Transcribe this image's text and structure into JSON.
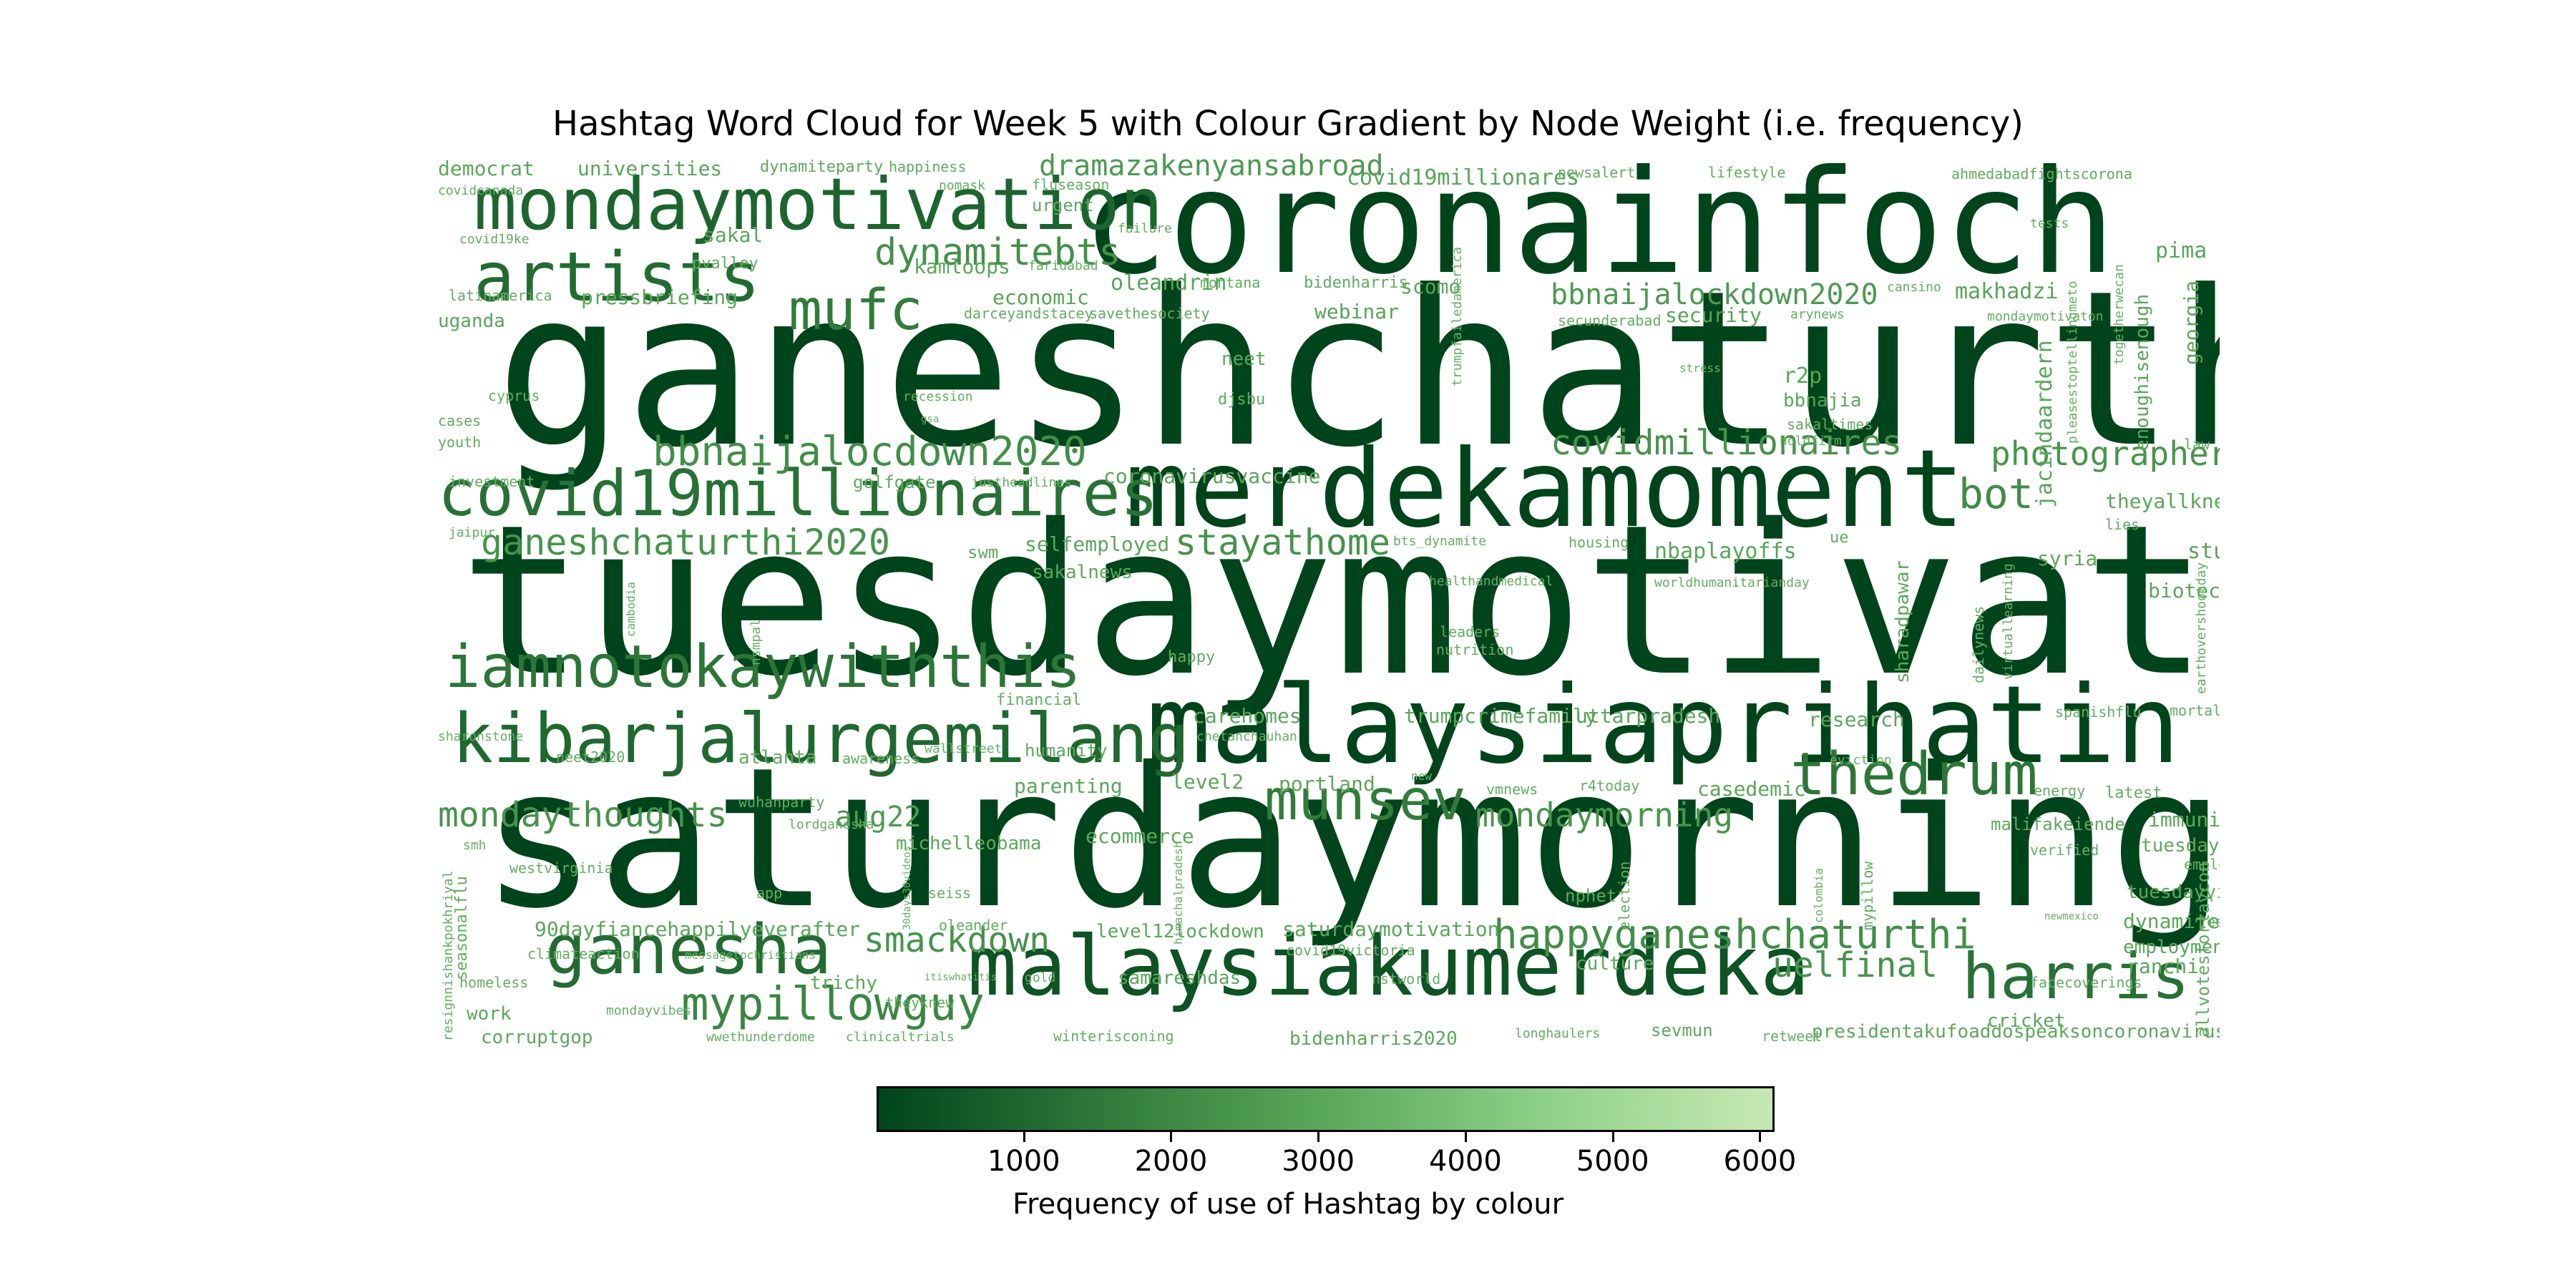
{
  "chart_data": {
    "type": "wordcloud",
    "title": "Hashtag Word Cloud for Week 5 with Colour Gradient by Node Weight (i.e. frequency)",
    "colorbar": {
      "label": "Frequency of use of Hashtag by colour",
      "ticks": [
        1000,
        2000,
        3000,
        4000,
        5000,
        6000
      ],
      "range": [
        0,
        6100
      ],
      "colormap": [
        "#00441b",
        "#2f7a3a",
        "#5aa85a",
        "#8fd18a",
        "#c7e9b4"
      ]
    },
    "words": [
      {
        "text": "ganeshchaturthi",
        "weight": 100
      },
      {
        "text": "tuesdaymotivation",
        "weight": 98
      },
      {
        "text": "saturdaymorning",
        "weight": 92
      },
      {
        "text": "coronainfoch",
        "weight": 72
      },
      {
        "text": "merdekamoment",
        "weight": 52
      },
      {
        "text": "malaysiaprihatin",
        "weight": 52
      },
      {
        "text": "malaysiakumerdeka",
        "weight": 40
      },
      {
        "text": "mondaymotivation",
        "weight": 34
      },
      {
        "text": "kibarjalurgemilang",
        "weight": 33
      },
      {
        "text": "covid19millionaires",
        "weight": 30
      },
      {
        "text": "artists",
        "weight": 32
      },
      {
        "text": "iamnotokaywiththis",
        "weight": 28
      },
      {
        "text": "ganesha",
        "weight": 32
      },
      {
        "text": "harris",
        "weight": 30
      },
      {
        "text": "thedrum",
        "weight": 28
      },
      {
        "text": "mufc",
        "weight": 26
      },
      {
        "text": "munsev",
        "weight": 26
      },
      {
        "text": "mypillowguy",
        "weight": 22
      },
      {
        "text": "happyganeshchaturthi",
        "weight": 19
      },
      {
        "text": "bbnaijalocdown2020",
        "weight": 19
      },
      {
        "text": "dynamitebts",
        "weight": 18
      },
      {
        "text": "ganeshchaturthi2020",
        "weight": 17
      },
      {
        "text": "stayathome",
        "weight": 17
      },
      {
        "text": "covidmillionaires",
        "weight": 17
      },
      {
        "text": "photographer",
        "weight": 16
      },
      {
        "text": "bot",
        "weight": 20
      },
      {
        "text": "mondaythoughts",
        "weight": 17
      },
      {
        "text": "smackdown",
        "weight": 17
      },
      {
        "text": "uelfinal",
        "weight": 17
      },
      {
        "text": "mondaymorning",
        "weight": 16
      },
      {
        "text": "bbnaijalockdown2020",
        "weight": 14
      },
      {
        "text": "dramazakenyansabroad",
        "weight": 14
      },
      {
        "text": "aug22",
        "weight": 14
      },
      {
        "text": "covid19millionares",
        "weight": 10
      },
      {
        "text": "democrat",
        "weight": 9
      },
      {
        "text": "universities",
        "weight": 9
      },
      {
        "text": "dynamiteparty",
        "weight": 8
      },
      {
        "text": "happiness",
        "weight": 7
      },
      {
        "text": "newsalert",
        "weight": 7
      },
      {
        "text": "lifestyle",
        "weight": 7
      },
      {
        "text": "ahmedabadfightscorona",
        "weight": 7
      },
      {
        "text": "covidcanada",
        "weight": 6
      },
      {
        "text": "nomask",
        "weight": 6
      },
      {
        "text": "fluseason",
        "weight": 6
      },
      {
        "text": "urgent",
        "weight": 8
      },
      {
        "text": "covid19ke",
        "weight": 6
      },
      {
        "text": "sakal",
        "weight": 9
      },
      {
        "text": "failure",
        "weight": 6
      },
      {
        "text": "tests",
        "weight": 6
      },
      {
        "text": "pvalley",
        "weight": 7
      },
      {
        "text": "kamloops",
        "weight": 9
      },
      {
        "text": "faridabad",
        "weight": 6
      },
      {
        "text": "oleandrin",
        "weight": 10
      },
      {
        "text": "montana",
        "weight": 7
      },
      {
        "text": "bidenharris",
        "weight": 7
      },
      {
        "text": "scomo",
        "weight": 9
      },
      {
        "text": "cansino",
        "weight": 6
      },
      {
        "text": "makhadzi",
        "weight": 10
      },
      {
        "text": "pima",
        "weight": 10
      },
      {
        "text": "latinamerica",
        "weight": 6
      },
      {
        "text": "pressbriefing",
        "weight": 9
      },
      {
        "text": "economic",
        "weight": 10
      },
      {
        "text": "darceyandstacey",
        "weight": 6
      },
      {
        "text": "savethesociety",
        "weight": 7
      },
      {
        "text": "webinar",
        "weight": 10
      },
      {
        "text": "secunderabad",
        "weight": 6
      },
      {
        "text": "security",
        "weight": 10
      },
      {
        "text": "arynews",
        "weight": 6
      },
      {
        "text": "mondaymotivaton",
        "weight": 6
      },
      {
        "text": "georgia",
        "weight": 9
      },
      {
        "text": "uganda",
        "weight": 9
      },
      {
        "text": "neet",
        "weight": 9
      },
      {
        "text": "stress",
        "weight": 6
      },
      {
        "text": "r2p",
        "weight": 10
      },
      {
        "text": "cyprus",
        "weight": 6
      },
      {
        "text": "recession",
        "weight": 6
      },
      {
        "text": "djsbu",
        "weight": 7
      },
      {
        "text": "bbnajia",
        "weight": 9
      },
      {
        "text": "enoughisenough",
        "weight": 9
      },
      {
        "text": "cases",
        "weight": 7
      },
      {
        "text": "youth",
        "weight": 7
      },
      {
        "text": "gsa",
        "weight": 5
      },
      {
        "text": "sakaltimes",
        "weight": 7
      },
      {
        "text": "holdfirm",
        "weight": 6
      },
      {
        "text": "law",
        "weight": 7
      },
      {
        "text": "investment",
        "weight": 6
      },
      {
        "text": "golfgate",
        "weight": 7
      },
      {
        "text": "justheadlines",
        "weight": 6
      },
      {
        "text": "coronavirusvaccine",
        "weight": 10
      },
      {
        "text": "lies",
        "weight": 7
      },
      {
        "text": "jaipur",
        "weight": 6
      },
      {
        "text": "theyallknew",
        "weight": 9
      },
      {
        "text": "swm",
        "weight": 7
      },
      {
        "text": "selfemployed",
        "weight": 9
      },
      {
        "text": "bts_dynamite",
        "weight": 6
      },
      {
        "text": "housing",
        "weight": 6
      },
      {
        "text": "nbaplayoffs",
        "weight": 10
      },
      {
        "text": "ue",
        "weight": 7
      },
      {
        "text": "syria",
        "weight": 9
      },
      {
        "text": "biotech",
        "weight": 9
      },
      {
        "text": "sturgis",
        "weight": 10
      },
      {
        "text": "sakalnews",
        "weight": 9
      },
      {
        "text": "healthandmedical",
        "weight": 6
      },
      {
        "text": "worldhumanitarianday",
        "weight": 6
      },
      {
        "text": "shibusoren",
        "weight": 6
      },
      {
        "text": "cambodia",
        "weight": 6
      },
      {
        "text": "leaders",
        "weight": 7
      },
      {
        "text": "nutrition",
        "weight": 7
      },
      {
        "text": "sharadpawar",
        "weight": 8
      },
      {
        "text": "dailynews",
        "weight": 6
      },
      {
        "text": "virtuallearning",
        "weight": 6
      },
      {
        "text": "earthovershootday",
        "weight": 6
      },
      {
        "text": "nsmpal",
        "weight": 5
      },
      {
        "text": "happy",
        "weight": 7
      },
      {
        "text": "financial",
        "weight": 6
      },
      {
        "text": "carehomes",
        "weight": 9
      },
      {
        "text": "trumpcrimefamily",
        "weight": 9
      },
      {
        "text": "uttarpradesh",
        "weight": 9
      },
      {
        "text": "research",
        "weight": 9
      },
      {
        "text": "spanishflu",
        "weight": 6
      },
      {
        "text": "mortality",
        "weight": 6
      },
      {
        "text": "property",
        "weight": 6
      },
      {
        "text": "chetanchauhan",
        "weight": 5
      },
      {
        "text": "sharonstone",
        "weight": 5
      },
      {
        "text": "neet2020",
        "weight": 6
      },
      {
        "text": "atlanta",
        "weight": 7
      },
      {
        "text": "awareness",
        "weight": 6
      },
      {
        "text": "wallstreet",
        "weight": 5
      },
      {
        "text": "humanity",
        "weight": 8
      },
      {
        "text": "eviction",
        "weight": 5
      },
      {
        "text": "parenting",
        "weight": 9
      },
      {
        "text": "level2",
        "weight": 9
      },
      {
        "text": "portland",
        "weight": 9
      },
      {
        "text": "new",
        "weight": 5
      },
      {
        "text": "vmnews",
        "weight": 6
      },
      {
        "text": "r4today",
        "weight": 6
      },
      {
        "text": "casedemic",
        "weight": 9
      },
      {
        "text": "energy",
        "weight": 6
      },
      {
        "text": "latest",
        "weight": 6
      },
      {
        "text": "wuhanparty",
        "weight": 6
      },
      {
        "text": "lordganesha",
        "weight": 6
      },
      {
        "text": "michelleobama",
        "weight": 8
      },
      {
        "text": "ecommerce",
        "weight": 9
      },
      {
        "text": "malifakeiende",
        "weight": 8
      },
      {
        "text": "immunity",
        "weight": 9
      },
      {
        "text": "tuesdaymorning",
        "weight": 8
      },
      {
        "text": "verified",
        "weight": 6
      },
      {
        "text": "employers",
        "weight": 6
      },
      {
        "text": "smh",
        "weight": 5
      },
      {
        "text": "westvirginia",
        "weight": 6
      },
      {
        "text": "tuesdayvibes",
        "weight": 9
      },
      {
        "text": "app",
        "weight": 6
      },
      {
        "text": "30days30videos",
        "weight": 5
      },
      {
        "text": "seiss",
        "weight": 6
      },
      {
        "text": "nphet",
        "weight": 8
      },
      {
        "text": "election",
        "weight": 6
      },
      {
        "text": "colombia",
        "weight": 5
      },
      {
        "text": "mypillow",
        "weight": 6
      },
      {
        "text": "dynamite100m",
        "weight": 9
      },
      {
        "text": "newmexico",
        "weight": 5
      },
      {
        "text": "jee",
        "weight": 6
      },
      {
        "text": "resignnishankpokhriyal",
        "weight": 6
      },
      {
        "text": "seasonalflu",
        "weight": 7
      },
      {
        "text": "oleander",
        "weight": 6
      },
      {
        "text": "himachalpradesh",
        "weight": 5
      },
      {
        "text": "90dayfiancehappilyeverafter",
        "weight": 9
      },
      {
        "text": "level12lockdown",
        "weight": 9
      },
      {
        "text": "saturdaymotivation",
        "weight": 9
      },
      {
        "text": "employment",
        "weight": 9
      },
      {
        "text": "allvotesforlaycon",
        "weight": 7
      },
      {
        "text": "climateaction",
        "weight": 6
      },
      {
        "text": "messagetochristians",
        "weight": 5
      },
      {
        "text": "covid19victoria",
        "weight": 6
      },
      {
        "text": "culture",
        "weight": 9
      },
      {
        "text": "ranchi",
        "weight": 9
      },
      {
        "text": "homeless",
        "weight": 6
      },
      {
        "text": "trichy",
        "weight": 9
      },
      {
        "text": "itiswhatitis",
        "weight": 5
      },
      {
        "text": "gold",
        "weight": 6
      },
      {
        "text": "samareshdas",
        "weight": 9
      },
      {
        "text": "nstworld",
        "weight": 6
      },
      {
        "text": "facecoverings",
        "weight": 6
      },
      {
        "text": "work",
        "weight": 8
      },
      {
        "text": "mondayvibes",
        "weight": 6
      },
      {
        "text": "theyknew",
        "weight": 7
      },
      {
        "text": "cricket",
        "weight": 9
      },
      {
        "text": "corruptgop",
        "weight": 8
      },
      {
        "text": "wwethunderdome",
        "weight": 6
      },
      {
        "text": "clinicaltrials",
        "weight": 6
      },
      {
        "text": "winterisconing",
        "weight": 6
      },
      {
        "text": "bidenharris2020",
        "weight": 9
      },
      {
        "text": "longhaulers",
        "weight": 6
      },
      {
        "text": "sevmun",
        "weight": 8
      },
      {
        "text": "retweet",
        "weight": 6
      },
      {
        "text": "presidentakufoaddospeaksoncoronavirus",
        "weight": 8
      },
      {
        "text": "pleasestoptellingmeto",
        "weight": 5
      },
      {
        "text": "togetherwecan",
        "weight": 5
      },
      {
        "text": "trumpfailedamerica",
        "weight": 5
      },
      {
        "text": "jacindaardern",
        "weight": 9
      }
    ]
  }
}
